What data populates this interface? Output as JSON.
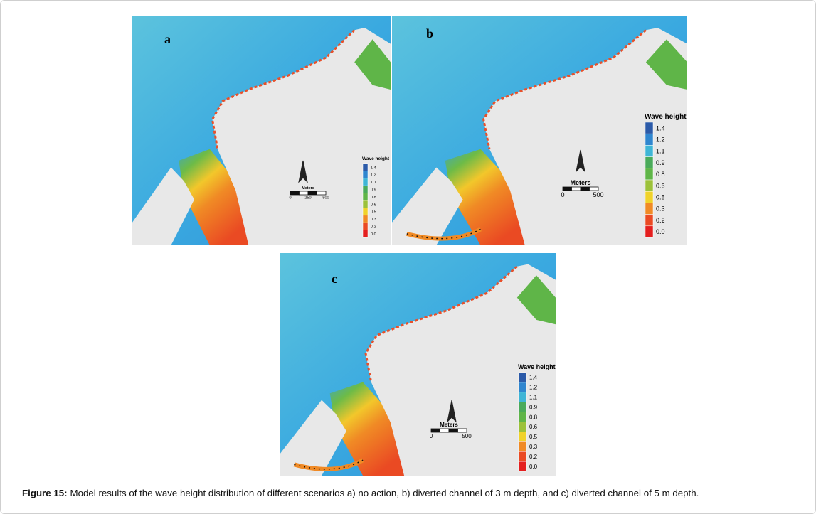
{
  "panels": [
    {
      "label": "a",
      "legend": {
        "title": "Wave height",
        "labels": [
          "1.4",
          "1.2",
          "1.1",
          "0.9",
          "0.8",
          "0.6",
          "0.5",
          "0.3",
          "0.2",
          "0.0"
        ]
      },
      "scale": {
        "title": "Meters",
        "ticks": [
          "0",
          "250",
          "500"
        ]
      }
    },
    {
      "label": "b",
      "legend": {
        "title": "Wave height",
        "labels": [
          "1.4",
          "1.2",
          "1.1",
          "0.9",
          "0.8",
          "0.6",
          "0.5",
          "0.3",
          "0.2",
          "0.0"
        ]
      },
      "scale": {
        "title": "Meters",
        "ticks": [
          "0",
          "500"
        ]
      }
    },
    {
      "label": "c",
      "legend": {
        "title": "Wave height",
        "labels": [
          "1.4",
          "1.2",
          "1.1",
          "0.9",
          "0.8",
          "0.6",
          "0.5",
          "0.3",
          "0.2",
          "0.0"
        ]
      },
      "scale": {
        "title": "Meters",
        "ticks": [
          "0",
          "500"
        ]
      }
    }
  ],
  "legend_colors": [
    "#2b5aa8",
    "#2f86cf",
    "#3fb5d6",
    "#4aaa5a",
    "#5fb548",
    "#9cc13a",
    "#f0d22a",
    "#f08a25",
    "#ea4a23",
    "#e41f1f"
  ],
  "caption": {
    "prefix": "Figure 15:",
    "text": "Model results of the wave height distribution of different scenarios a) no action, b) diverted channel of 3 m depth, and c) diverted channel of 5 m depth."
  }
}
